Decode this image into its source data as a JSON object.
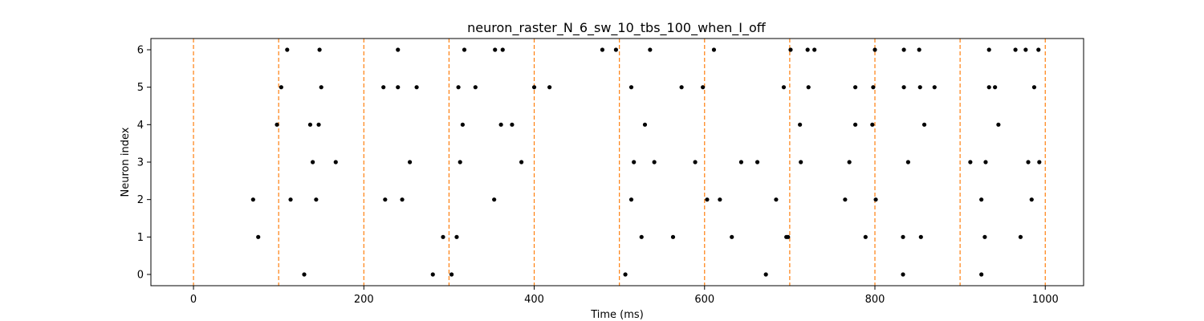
{
  "chart_data": {
    "type": "scatter",
    "title": "neuron_raster_N_6_sw_10_tbs_100_when_I_off",
    "xlabel": "Time (ms)",
    "ylabel": "Neuron index",
    "xlim": [
      -50,
      1045
    ],
    "ylim": [
      -0.3,
      6.3
    ],
    "xticks": [
      0,
      200,
      400,
      600,
      800,
      1000
    ],
    "yticks": [
      0,
      1,
      2,
      3,
      4,
      5,
      6
    ],
    "grid": false,
    "colors": {
      "points": "#000000",
      "vlines": "#ff7f0e",
      "axes": "#000000"
    },
    "vlines": [
      0,
      100,
      200,
      300,
      400,
      500,
      600,
      700,
      800,
      900,
      1000
    ],
    "series": [
      {
        "neuron": 6,
        "x": [
          110,
          148,
          240,
          318,
          354,
          363,
          480,
          496,
          536,
          611,
          701,
          721,
          729,
          800,
          834,
          852,
          934,
          965,
          977,
          992
        ]
      },
      {
        "neuron": 5,
        "x": [
          103,
          150,
          223,
          240,
          262,
          311,
          331,
          400,
          418,
          514,
          573,
          598,
          693,
          722,
          777,
          798,
          834,
          853,
          870,
          934,
          941,
          987
        ]
      },
      {
        "neuron": 4,
        "x": [
          98,
          137,
          147,
          316,
          361,
          374,
          530,
          712,
          777,
          797,
          858,
          945
        ]
      },
      {
        "neuron": 3,
        "x": [
          140,
          167,
          254,
          313,
          385,
          517,
          541,
          589,
          643,
          662,
          713,
          770,
          839,
          912,
          930,
          980,
          993
        ]
      },
      {
        "neuron": 2,
        "x": [
          70,
          114,
          144,
          225,
          245,
          353,
          514,
          603,
          618,
          684,
          765,
          801,
          925,
          984
        ]
      },
      {
        "neuron": 1,
        "x": [
          76,
          293,
          309,
          526,
          563,
          632,
          696,
          698,
          789,
          833,
          854,
          929,
          971
        ]
      },
      {
        "neuron": 0,
        "x": [
          130,
          281,
          303,
          507,
          672,
          833,
          925
        ]
      }
    ]
  }
}
